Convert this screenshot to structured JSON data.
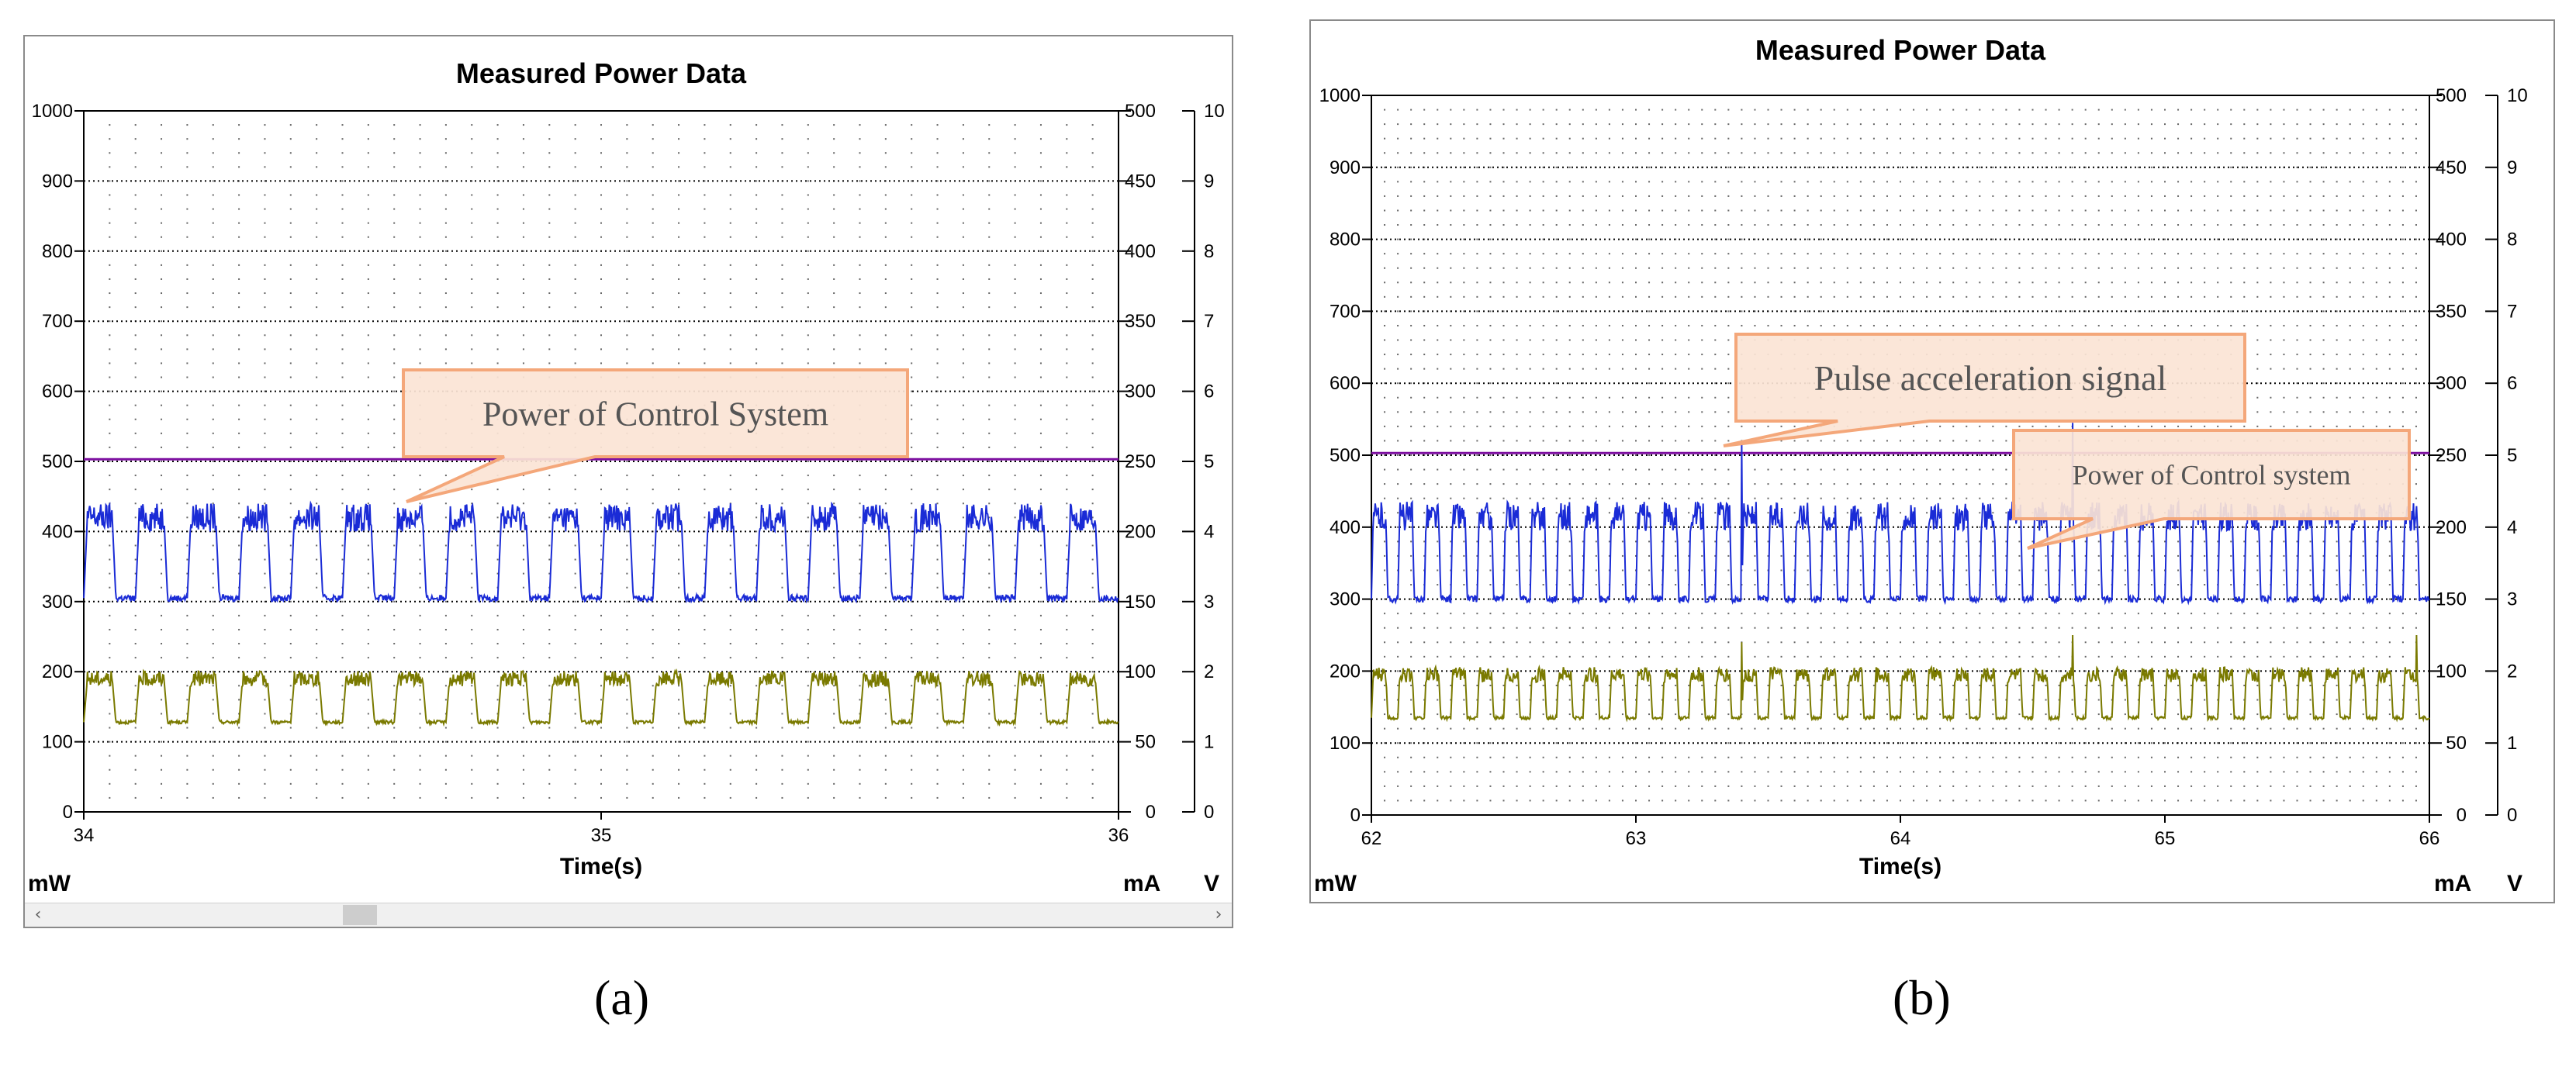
{
  "chart_data": [
    {
      "type": "line",
      "panel": "a",
      "title": "Measured Power Data",
      "xlabel": "Time(s)",
      "x_ticks": [
        "34",
        "35",
        "36"
      ],
      "xlim": [
        34,
        36
      ],
      "y_left_unit": "mW",
      "y_left_ticks": [
        "0",
        "100",
        "200",
        "300",
        "400",
        "500",
        "600",
        "700",
        "800",
        "900",
        "1000"
      ],
      "y_left_lim": [
        0,
        1000
      ],
      "y_mid_unit": "mA",
      "y_mid_ticks": [
        "0",
        "50",
        "100",
        "150",
        "200",
        "250",
        "300",
        "350",
        "400",
        "450",
        "500"
      ],
      "y_right_unit": "V",
      "y_right_ticks": [
        "0",
        "1",
        "2",
        "3",
        "4",
        "5",
        "6",
        "7",
        "8",
        "9",
        "10"
      ],
      "grid": true,
      "series": [
        {
          "color": "#7d0fa0",
          "kind": "constant",
          "value": 503
        },
        {
          "color": "#1a2bd6",
          "kind": "pulse",
          "low": 305,
          "high": 420,
          "period": 0.1,
          "spikes": []
        },
        {
          "color": "#7a7a00",
          "kind": "pulse",
          "low": 128,
          "high": 190,
          "period": 0.1,
          "spikes": []
        }
      ],
      "annotation": "Power of Control System"
    },
    {
      "type": "line",
      "panel": "b",
      "title": "Measured Power Data",
      "xlabel": "Time(s)",
      "x_ticks": [
        "62",
        "63",
        "64",
        "65",
        "66"
      ],
      "xlim": [
        62,
        66
      ],
      "y_left_unit": "mW",
      "y_left_ticks": [
        "0",
        "100",
        "200",
        "300",
        "400",
        "500",
        "600",
        "700",
        "800",
        "900",
        "1000"
      ],
      "y_left_lim": [
        0,
        1000
      ],
      "y_mid_unit": "mA",
      "y_mid_ticks": [
        "0",
        "50",
        "100",
        "150",
        "200",
        "250",
        "300",
        "350",
        "400",
        "450",
        "500"
      ],
      "y_right_unit": "V",
      "y_right_ticks": [
        "0",
        "1",
        "2",
        "3",
        "4",
        "5",
        "6",
        "7",
        "8",
        "9",
        "10"
      ],
      "grid": true,
      "series": [
        {
          "color": "#7d0fa0",
          "kind": "constant",
          "value": 503
        },
        {
          "color": "#1a2bd6",
          "kind": "pulse",
          "low": 300,
          "high": 415,
          "period": 0.1,
          "spikes": [
            [
              63.4,
              520
            ],
            [
              64.65,
              545
            ]
          ]
        },
        {
          "color": "#7a7a00",
          "kind": "pulse",
          "low": 135,
          "high": 195,
          "period": 0.1,
          "spikes": [
            [
              63.4,
              240
            ],
            [
              64.65,
              250
            ],
            [
              65.95,
              250
            ]
          ]
        }
      ],
      "annotations": [
        "Pulse acceleration signal",
        "Power of Control system"
      ]
    }
  ],
  "captions": {
    "a": "(a)",
    "b": "(b)"
  },
  "scrollbar": {
    "left_arrow": "‹",
    "right_arrow": "›"
  }
}
